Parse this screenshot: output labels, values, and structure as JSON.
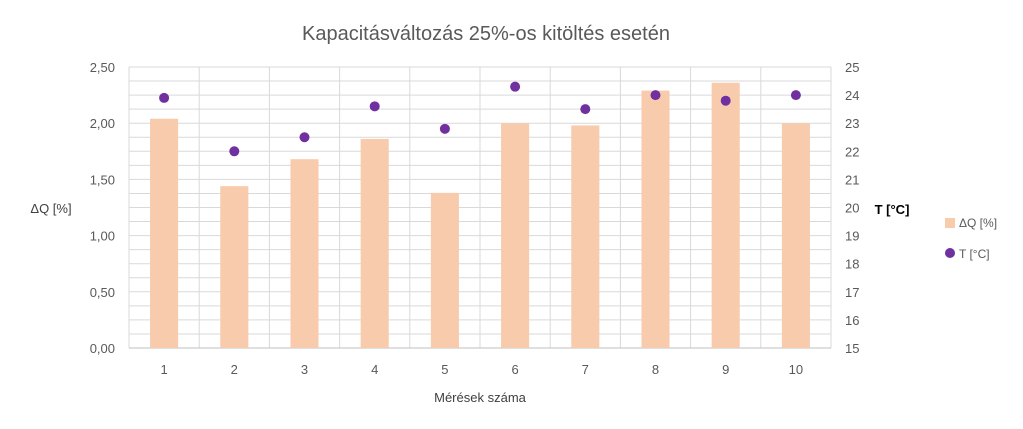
{
  "chart_data": {
    "type": "bar",
    "title": "Kapacitásváltozás 25%-os kitöltés esetén",
    "xlabel": "Mérések száma",
    "ylabel": "ΔQ [%]",
    "y2label": "T [°C]",
    "categories": [
      "1",
      "2",
      "3",
      "4",
      "5",
      "6",
      "7",
      "8",
      "9",
      "10"
    ],
    "ylim": [
      0,
      2.5
    ],
    "yticks": [
      "0,00",
      "0,50",
      "1,00",
      "1,50",
      "2,00",
      "2,50"
    ],
    "y2lim": [
      15,
      25
    ],
    "y2ticks": [
      "15",
      "16",
      "17",
      "18",
      "19",
      "20",
      "21",
      "22",
      "23",
      "24",
      "25"
    ],
    "grid": true,
    "legend_position": "right",
    "series": [
      {
        "name": "ΔQ [%]",
        "type": "bar",
        "axis": "left",
        "color": "#f8cbad",
        "values": [
          2.04,
          1.44,
          1.68,
          1.86,
          1.38,
          2.0,
          1.98,
          2.29,
          2.36,
          2.0
        ]
      },
      {
        "name": "T [°C]",
        "type": "scatter",
        "axis": "right",
        "color": "#7030a0",
        "values": [
          23.9,
          22.0,
          22.5,
          23.6,
          22.8,
          24.3,
          23.5,
          24.0,
          23.8,
          24.0
        ]
      }
    ]
  }
}
